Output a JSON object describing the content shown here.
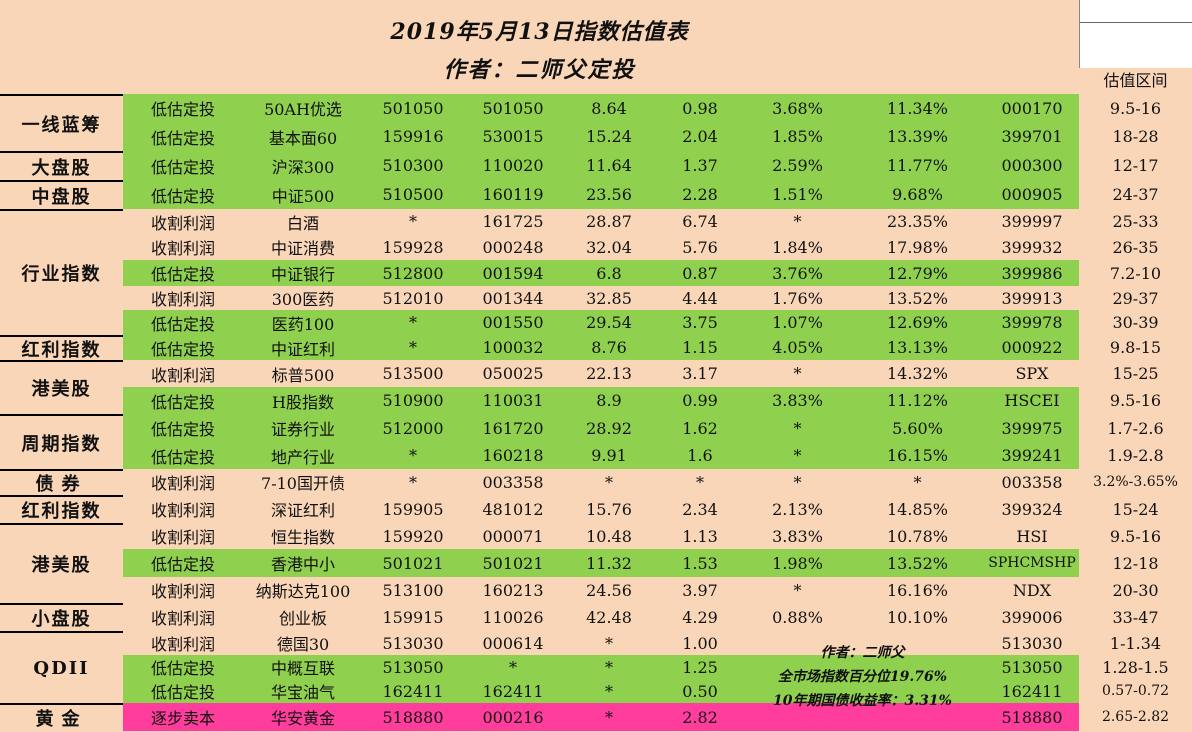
{
  "title": "2019年5月13日指数估值表",
  "author_line": "作者：二师父定投",
  "range_header": "估值区间",
  "note": {
    "author": "作者：二师父",
    "market_percentile": "全市场指数百分位19.76%",
    "bond_yield": "10年期国债收益率：3.31%"
  },
  "colors": {
    "background": "#fad6b9",
    "green": "#8fd14f",
    "pink": "#ff3d9c"
  },
  "categories": [
    {
      "label": "一线蓝筹",
      "start": 0,
      "span": 2
    },
    {
      "label": "大盘股",
      "start": 2,
      "span": 1
    },
    {
      "label": "中盘股",
      "start": 3,
      "span": 1
    },
    {
      "label": "行业指数",
      "start": 4,
      "span": 5
    },
    {
      "label": "红利指数",
      "start": 9,
      "span": 1
    },
    {
      "label": "港美股",
      "start": 10,
      "span": 2
    },
    {
      "label": "周期指数",
      "start": 12,
      "span": 2
    },
    {
      "label": "债券",
      "start": 14,
      "span": 1
    },
    {
      "label": "红利指数",
      "start": 15,
      "span": 1
    },
    {
      "label": "港美股",
      "start": 16,
      "span": 3
    },
    {
      "label": "小盘股",
      "start": 19,
      "span": 1
    },
    {
      "label": "QDII",
      "start": 20,
      "span": 3
    },
    {
      "label": "黄金",
      "start": 23,
      "span": 1
    }
  ],
  "rows": [
    {
      "color": "green",
      "cells": [
        "低估定投",
        "50AH优选",
        "501050",
        "501050",
        "8.64",
        "0.98",
        "3.68%",
        "11.34%",
        "000170",
        "9.5-16"
      ]
    },
    {
      "color": "green",
      "cells": [
        "低估定投",
        "基本面60",
        "159916",
        "530015",
        "15.24",
        "2.04",
        "1.85%",
        "13.39%",
        "399701",
        "18-28"
      ]
    },
    {
      "color": "green",
      "cells": [
        "低估定投",
        "沪深300",
        "510300",
        "110020",
        "11.64",
        "1.37",
        "2.59%",
        "11.77%",
        "000300",
        "12-17"
      ]
    },
    {
      "color": "green",
      "cells": [
        "低估定投",
        "中证500",
        "510500",
        "160119",
        "23.56",
        "2.28",
        "1.51%",
        "9.68%",
        "000905",
        "24-37"
      ]
    },
    {
      "color": "none",
      "cells": [
        "收割利润",
        "白酒",
        "*",
        "161725",
        "28.87",
        "6.74",
        "*",
        "23.35%",
        "399997",
        "25-33"
      ]
    },
    {
      "color": "none",
      "cells": [
        "收割利润",
        "中证消费",
        "159928",
        "000248",
        "32.04",
        "5.76",
        "1.84%",
        "17.98%",
        "399932",
        "26-35"
      ]
    },
    {
      "color": "green",
      "cells": [
        "低估定投",
        "中证银行",
        "512800",
        "001594",
        "6.8",
        "0.87",
        "3.76%",
        "12.79%",
        "399986",
        "7.2-10"
      ]
    },
    {
      "color": "none",
      "cells": [
        "收割利润",
        "300医药",
        "512010",
        "001344",
        "32.85",
        "4.44",
        "1.76%",
        "13.52%",
        "399913",
        "29-37"
      ]
    },
    {
      "color": "green",
      "cells": [
        "低估定投",
        "医药100",
        "*",
        "001550",
        "29.54",
        "3.75",
        "1.07%",
        "12.69%",
        "399978",
        "30-39"
      ]
    },
    {
      "color": "green",
      "cells": [
        "低估定投",
        "中证红利",
        "*",
        "100032",
        "8.76",
        "1.15",
        "4.05%",
        "13.13%",
        "000922",
        "9.8-15"
      ]
    },
    {
      "color": "none",
      "cells": [
        "收割利润",
        "标普500",
        "513500",
        "050025",
        "22.13",
        "3.17",
        "*",
        "14.32%",
        "SPX",
        "15-25"
      ]
    },
    {
      "color": "green",
      "cells": [
        "低估定投",
        "H股指数",
        "510900",
        "110031",
        "8.9",
        "0.99",
        "3.83%",
        "11.12%",
        "HSCEI",
        "9.5-16"
      ]
    },
    {
      "color": "green",
      "cells": [
        "低估定投",
        "证券行业",
        "512000",
        "161720",
        "28.92",
        "1.62",
        "*",
        "5.60%",
        "399975",
        "1.7-2.6"
      ]
    },
    {
      "color": "green",
      "cells": [
        "低估定投",
        "地产行业",
        "*",
        "160218",
        "9.91",
        "1.6",
        "*",
        "16.15%",
        "399241",
        "1.9-2.8"
      ]
    },
    {
      "color": "none",
      "cells": [
        "收割利润",
        "7-10国开债",
        "*",
        "003358",
        "*",
        "*",
        "*",
        "*",
        "003358",
        "3.2%-3.65%"
      ]
    },
    {
      "color": "none",
      "cells": [
        "收割利润",
        "深证红利",
        "159905",
        "481012",
        "15.76",
        "2.34",
        "2.13%",
        "14.85%",
        "399324",
        "15-24"
      ]
    },
    {
      "color": "none",
      "cells": [
        "收割利润",
        "恒生指数",
        "159920",
        "000071",
        "10.48",
        "1.13",
        "3.83%",
        "10.78%",
        "HSI",
        "9.5-16"
      ]
    },
    {
      "color": "green",
      "cells": [
        "低估定投",
        "香港中小",
        "501021",
        "501021",
        "11.32",
        "1.53",
        "1.98%",
        "13.52%",
        "SPHCMSHP",
        "12-18"
      ]
    },
    {
      "color": "none",
      "cells": [
        "收割利润",
        "纳斯达克100",
        "513100",
        "160213",
        "24.56",
        "3.97",
        "*",
        "16.16%",
        "NDX",
        "20-30"
      ]
    },
    {
      "color": "none",
      "cells": [
        "收割利润",
        "创业板",
        "159915",
        "110026",
        "42.48",
        "4.29",
        "0.88%",
        "10.10%",
        "399006",
        "33-47"
      ]
    },
    {
      "color": "none",
      "cells": [
        "收割利润",
        "德国30",
        "513030",
        "000614",
        "*",
        "1.00",
        "",
        "",
        "513030",
        "1-1.34"
      ]
    },
    {
      "color": "green",
      "cells": [
        "低估定投",
        "中概互联",
        "513050",
        "*",
        "*",
        "1.25",
        "",
        "",
        "513050",
        "1.28-1.5"
      ]
    },
    {
      "color": "green",
      "cells": [
        "低估定投",
        "华宝油气",
        "162411",
        "162411",
        "*",
        "0.50",
        "",
        "",
        "162411",
        "0.57-0.72"
      ]
    },
    {
      "color": "pink",
      "cells": [
        "逐步卖本",
        "华安黄金",
        "518880",
        "000216",
        "*",
        "2.82",
        "",
        "",
        "518880",
        "2.65-2.82"
      ]
    }
  ]
}
